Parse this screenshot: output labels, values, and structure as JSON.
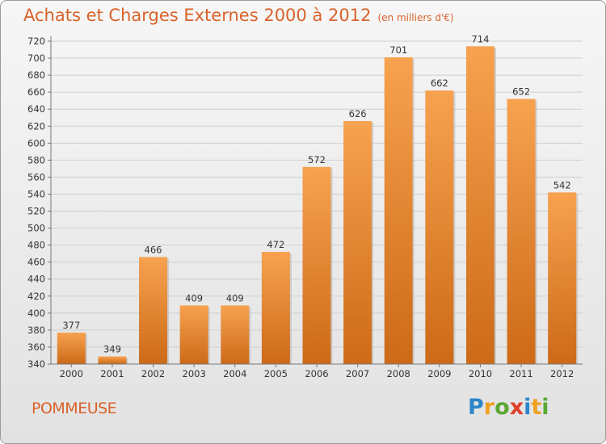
{
  "chart_data": {
    "type": "bar",
    "title": "Achats et Charges Externes 2000 à 2012",
    "subtitle": "(en milliers d'€)",
    "categories": [
      "2000",
      "2001",
      "2002",
      "2003",
      "2004",
      "2005",
      "2006",
      "2007",
      "2008",
      "2009",
      "2010",
      "2011",
      "2012"
    ],
    "values": [
      377,
      349,
      466,
      409,
      409,
      472,
      572,
      626,
      701,
      662,
      714,
      652,
      542
    ],
    "ylim": [
      340,
      720
    ],
    "yticks": [
      340,
      360,
      380,
      400,
      420,
      440,
      460,
      480,
      500,
      520,
      540,
      560,
      580,
      600,
      620,
      640,
      660,
      680,
      700,
      720
    ],
    "grid": true,
    "bar_color_top": "#f7a24f",
    "bar_color_bottom": "#cc6a18",
    "xlabel": "",
    "ylabel": ""
  },
  "footer": {
    "commune": "POMMEUSE",
    "logo": {
      "letters": [
        "P",
        "r",
        "o",
        "x",
        "i",
        "t",
        "i"
      ],
      "colors": [
        "#2e86c8",
        "#f0a020",
        "#5aa832",
        "#e0402a",
        "#2e86c8",
        "#f0a020",
        "#5aa832"
      ]
    }
  }
}
